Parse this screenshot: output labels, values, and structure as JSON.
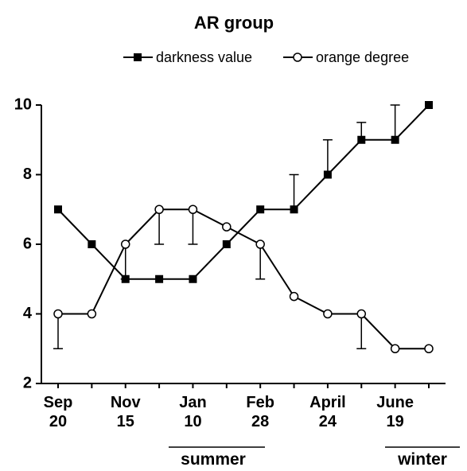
{
  "chart_data": {
    "type": "line",
    "title": "AR group",
    "categories": [
      "Sep\n20",
      null,
      "Nov\n15",
      null,
      "Jan\n10",
      null,
      "Feb\n28",
      null,
      "April\n24",
      null,
      "June\n19",
      null
    ],
    "series": [
      {
        "name": "darkness value",
        "color": "#000000",
        "marker": "square",
        "error_side": "up",
        "values": [
          7,
          6,
          5,
          5,
          5,
          6,
          7,
          7,
          8,
          9,
          9,
          10
        ],
        "errors": [
          null,
          null,
          null,
          null,
          null,
          null,
          null,
          1,
          1,
          0.5,
          1,
          null
        ]
      },
      {
        "name": "orange degree",
        "color": "#000000",
        "marker": "circle",
        "error_side": "down",
        "values": [
          4,
          4,
          6,
          7,
          7,
          6.5,
          6,
          4.5,
          4,
          4,
          3,
          3
        ],
        "errors": [
          1,
          null,
          1,
          1,
          1,
          null,
          1,
          null,
          null,
          1,
          null,
          null
        ]
      }
    ],
    "ylim": [
      2,
      10
    ],
    "yticks": [
      2,
      4,
      6,
      8,
      10
    ],
    "annotations": [
      "summer",
      "winter"
    ],
    "legend": "top"
  }
}
